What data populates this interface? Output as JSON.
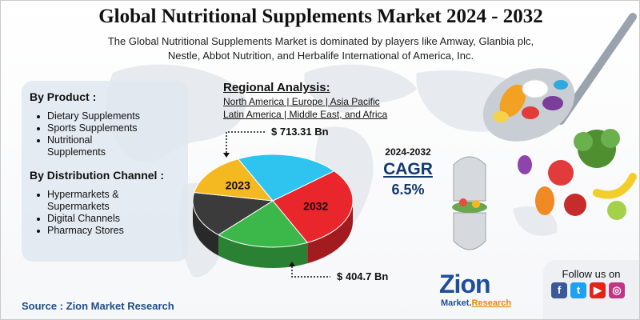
{
  "title": "Global Nutritional Supplements Market 2024 - 2032",
  "subtitle_line1": "The Global Nutritional Supplements Market is dominated by players like Amway, Glanbia plc,",
  "subtitle_line2": "Nestle, Abbot Nutrition, and Herbalife International of America, Inc.",
  "by_product": {
    "title": "By Product :",
    "items": [
      "Dietary Supplements",
      "Sports Supplements",
      "Nutritional",
      "Supplements"
    ]
  },
  "by_channel": {
    "title": "By Distribution Channel :",
    "items": [
      "Hypermarkets &",
      "Supermarkets",
      "Digital Channels",
      "Pharmacy Stores"
    ]
  },
  "regional": {
    "title": "Regional Analysis:",
    "line1": "North America | Europe | Asia Pacific",
    "line2": "Latin America | Middle East, and Africa"
  },
  "cagr": {
    "period": "2024-2032",
    "label": "CAGR",
    "value": "6.5%"
  },
  "source": "Source : Zion Market Research",
  "follow": "Follow us on",
  "logo": {
    "main": "Zion",
    "sub_a": "Market.",
    "sub_b": "Research"
  },
  "social_icons": [
    "facebook-icon",
    "twitter-icon",
    "youtube-icon",
    "instagram-icon"
  ],
  "colors": {
    "red": "#e8262b",
    "green": "#3cb84a",
    "dark": "#3b3b3b",
    "yellow": "#f4b820",
    "cyan": "#2ec4ef",
    "brand": "#1f4e9a"
  },
  "chart_data": {
    "type": "pie",
    "slices": [
      {
        "label": "2032",
        "color": "#e8262b"
      },
      {
        "label": "",
        "color": "#3cb84a"
      },
      {
        "label": "",
        "color": "#3b3b3b"
      },
      {
        "label": "2023",
        "color": "#f4b820"
      },
      {
        "label": "",
        "color": "#2ec4ef"
      }
    ],
    "values": [
      29,
      19,
      16,
      15,
      21
    ],
    "annotations": [
      {
        "text": "$ 713.31 Bn",
        "year": "2032"
      },
      {
        "text": "$ 404.7 Bn",
        "year": "2023"
      }
    ]
  }
}
